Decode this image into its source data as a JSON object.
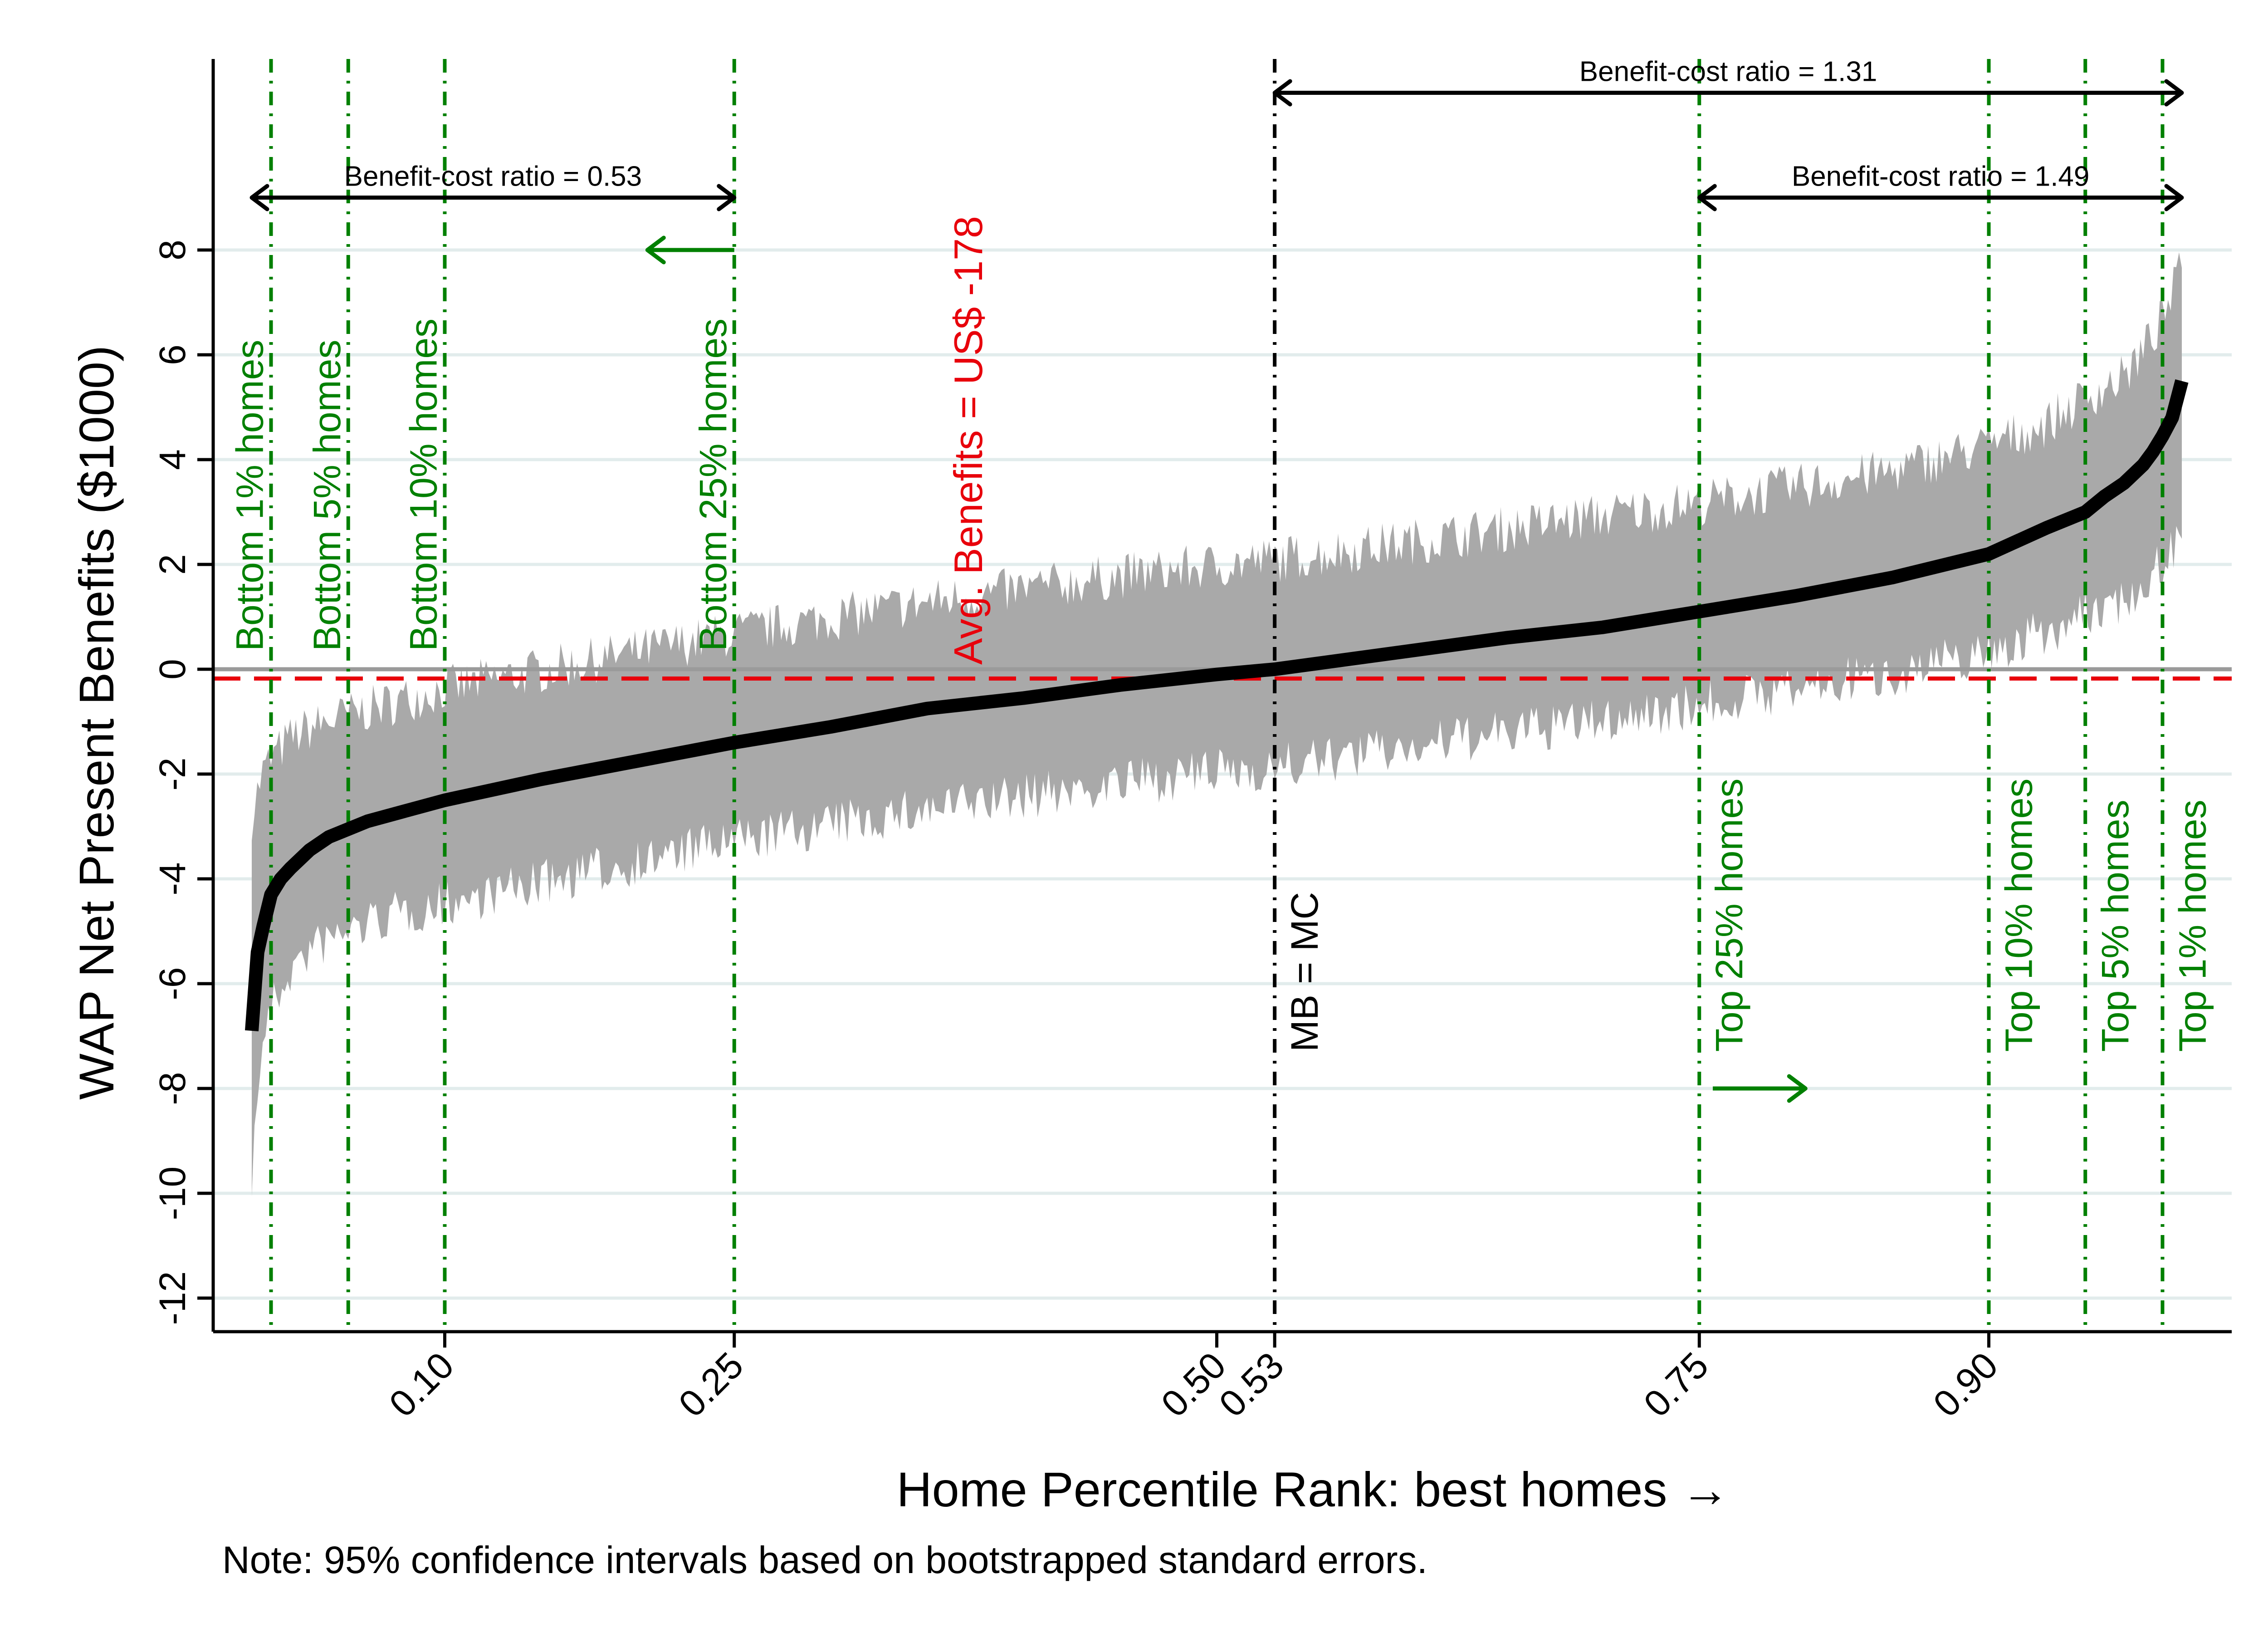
{
  "chart_data": {
    "type": "line",
    "title": "",
    "xlabel": "Home Percentile Rank: best homes →",
    "ylabel": "WAP Net Present Benefits ($1000)",
    "note": "Note: 95% confidence intervals based on bootstrapped standard errors.",
    "xlim": [
      0.0,
      1.0
    ],
    "ylim": [
      -12.7,
      11.7
    ],
    "x_tick_values": [
      0.1,
      0.25,
      0.5,
      0.53,
      0.75,
      0.9
    ],
    "x_tick_labels": [
      "0.10",
      "0.25",
      "0.50",
      "0.53",
      "0.75",
      "0.90"
    ],
    "y_tick_values": [
      8,
      6,
      4,
      2,
      0,
      -2,
      -4,
      -6,
      -8,
      -10,
      -12
    ],
    "y_tick_labels": [
      "8",
      "6",
      "4",
      "2",
      "0",
      "-2",
      "-4",
      "-6",
      "-8",
      "-10",
      "-12"
    ],
    "grid": true,
    "colors": {
      "curve": "#000000",
      "band": "#a9a9a9",
      "grid": "#e2ecec",
      "zero_line": "#9a9a9a",
      "avg_line": "#e8000b",
      "green": "#008000",
      "mbmc": "#000000"
    },
    "series": [
      {
        "name": "",
        "x": [
          0.0,
          0.003,
          0.006,
          0.01,
          0.015,
          0.02,
          0.03,
          0.04,
          0.05,
          0.06,
          0.08,
          0.1,
          0.15,
          0.2,
          0.25,
          0.3,
          0.35,
          0.4,
          0.45,
          0.5,
          0.53,
          0.55,
          0.6,
          0.65,
          0.7,
          0.75,
          0.8,
          0.85,
          0.9,
          0.93,
          0.95,
          0.96,
          0.97,
          0.98,
          0.985,
          0.99,
          0.995,
          1.0
        ],
        "y": [
          -6.9,
          -5.4,
          -4.9,
          -4.3,
          -4.0,
          -3.8,
          -3.45,
          -3.2,
          -3.05,
          -2.9,
          -2.7,
          -2.5,
          -2.1,
          -1.75,
          -1.4,
          -1.1,
          -0.75,
          -0.55,
          -0.3,
          -0.1,
          0.0,
          0.1,
          0.35,
          0.6,
          0.8,
          1.1,
          1.4,
          1.75,
          2.2,
          2.7,
          3.0,
          3.3,
          3.55,
          3.9,
          4.15,
          4.45,
          4.8,
          5.5
        ]
      }
    ],
    "ci_band": {
      "name": "95% confidence interval",
      "x": [
        0.0,
        0.005,
        0.01,
        0.02,
        0.03,
        0.05,
        0.07,
        0.1,
        0.15,
        0.2,
        0.25,
        0.3,
        0.35,
        0.4,
        0.45,
        0.5,
        0.55,
        0.6,
        0.65,
        0.7,
        0.75,
        0.8,
        0.85,
        0.9,
        0.93,
        0.95,
        0.97,
        0.98,
        0.99,
        1.0
      ],
      "lower": [
        -9.5,
        -7.0,
        -6.3,
        -5.6,
        -5.2,
        -4.8,
        -4.55,
        -4.3,
        -3.9,
        -3.5,
        -3.1,
        -2.8,
        -2.5,
        -2.25,
        -2.0,
        -1.8,
        -1.6,
        -1.3,
        -1.05,
        -0.8,
        -0.5,
        -0.2,
        0.1,
        0.5,
        0.9,
        1.2,
        1.5,
        1.8,
        2.2,
        2.8
      ],
      "upper": [
        -3.0,
        -2.2,
        -1.9,
        -1.5,
        -1.3,
        -1.05,
        -0.85,
        -0.55,
        -0.2,
        0.15,
        0.5,
        0.8,
        1.1,
        1.35,
        1.6,
        1.8,
        2.0,
        2.25,
        2.5,
        2.75,
        3.0,
        3.3,
        3.6,
        4.1,
        4.5,
        5.0,
        5.4,
        5.9,
        6.5,
        7.5
      ]
    },
    "avg_line": {
      "y": -0.178,
      "label": "Avg. Benefits = US$ -178"
    },
    "vlines": [
      {
        "x": 0.01,
        "label": "Bottom 1% homes",
        "color": "green",
        "label_pos": "upper"
      },
      {
        "x": 0.05,
        "label": "Bottom 5% homes",
        "color": "green",
        "label_pos": "upper"
      },
      {
        "x": 0.1,
        "label": "Bottom 10% homes",
        "color": "green",
        "label_pos": "upper"
      },
      {
        "x": 0.25,
        "label": "Bottom 25% homes",
        "color": "green",
        "label_pos": "upper"
      },
      {
        "x": 0.53,
        "label": "MB = MC",
        "color": "mbmc",
        "label_pos": "lower"
      },
      {
        "x": 0.75,
        "label": "Top 25% homes",
        "color": "green",
        "label_pos": "lower"
      },
      {
        "x": 0.9,
        "label": "Top 10% homes",
        "color": "green",
        "label_pos": "lower"
      },
      {
        "x": 0.95,
        "label": "Top 5% homes",
        "color": "green",
        "label_pos": "lower"
      },
      {
        "x": 0.99,
        "label": "Top 1% homes",
        "color": "green",
        "label_pos": "lower"
      }
    ],
    "ratio_arrows": [
      {
        "x_from": 0.0,
        "x_to": 0.25,
        "y": 9.0,
        "label": "Benefit-cost ratio = 0.53"
      },
      {
        "x_from": 0.53,
        "x_to": 1.0,
        "y": 11.0,
        "label": "Benefit-cost ratio = 1.31"
      },
      {
        "x_from": 0.75,
        "x_to": 1.0,
        "y": 9.0,
        "label": "Benefit-cost ratio = 1.49"
      }
    ],
    "direction_arrows": [
      {
        "x_from": 0.25,
        "x_to": 0.205,
        "y": 8.0,
        "direction": "left"
      },
      {
        "x_from": 0.757,
        "x_to": 0.805,
        "y": -8.0,
        "direction": "right"
      }
    ]
  }
}
